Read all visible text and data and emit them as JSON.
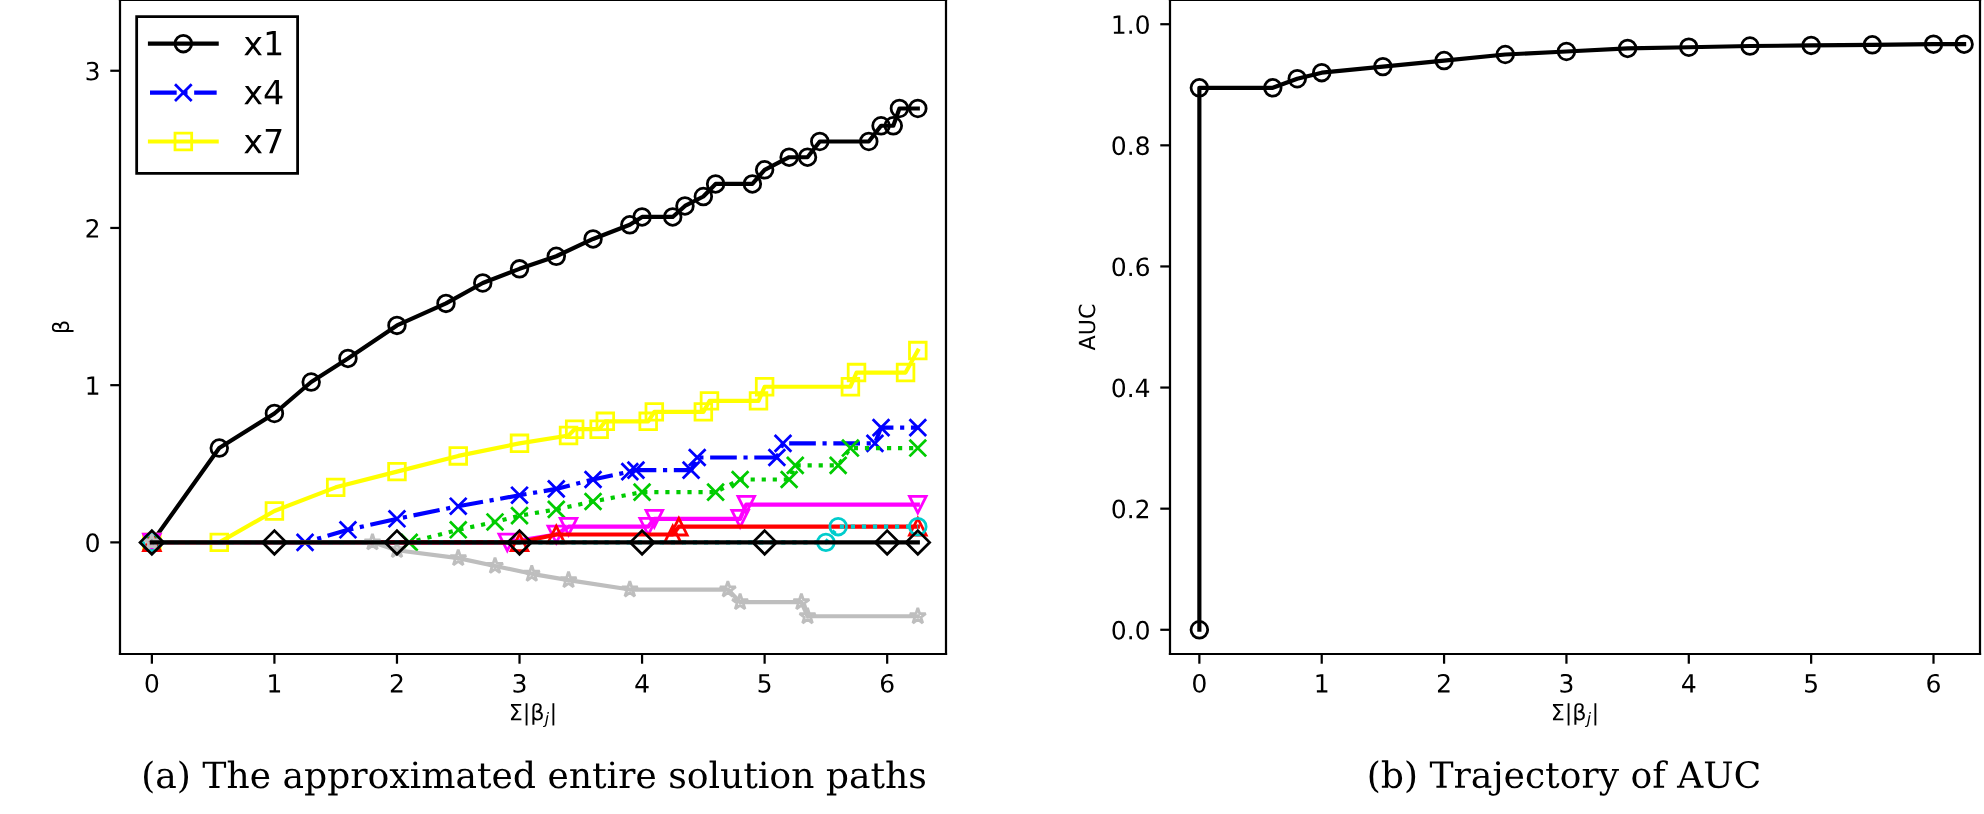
{
  "chart_data": [
    {
      "type": "line",
      "xlabel": "Σ|β$_{j}$|",
      "ylabel": "β",
      "xlim": [
        -0.26,
        6.48
      ],
      "ylim": [
        -0.71,
        3.45
      ],
      "xticks": [
        0,
        1,
        2,
        3,
        4,
        5,
        6
      ],
      "yticks": [
        0,
        1,
        2,
        3
      ],
      "grid": false,
      "legend": "top left",
      "annotations": [
        "(a) The approximated entire solution paths"
      ],
      "series": [
        {
          "name": "x1",
          "color": "#000000",
          "marker": "circle",
          "line_style": "solid",
          "x": [
            0,
            0.55,
            1.0,
            1.3,
            1.6,
            2.0,
            2.4,
            2.7,
            3.0,
            3.3,
            3.6,
            3.9,
            4.0,
            4.25,
            4.35,
            4.5,
            4.6,
            4.9,
            5.0,
            5.2,
            5.35,
            5.45,
            5.85,
            5.95,
            6.05,
            6.1,
            6.25
          ],
          "values": [
            0,
            0.6,
            0.82,
            1.02,
            1.17,
            1.38,
            1.52,
            1.65,
            1.74,
            1.82,
            1.93,
            2.02,
            2.07,
            2.07,
            2.14,
            2.2,
            2.28,
            2.28,
            2.37,
            2.45,
            2.45,
            2.55,
            2.55,
            2.65,
            2.65,
            2.76,
            2.76
          ]
        },
        {
          "name": "x4",
          "color": "#0000ff",
          "marker": "cross",
          "line_style": "dashed",
          "x": [
            0,
            1.25,
            1.6,
            2.0,
            2.5,
            3.0,
            3.3,
            3.6,
            3.9,
            3.95,
            4.4,
            4.45,
            5.1,
            5.15,
            5.9,
            5.95,
            6.25
          ],
          "values": [
            0,
            0,
            0.08,
            0.15,
            0.23,
            0.3,
            0.34,
            0.4,
            0.45,
            0.46,
            0.46,
            0.54,
            0.54,
            0.63,
            0.63,
            0.73,
            0.73
          ]
        },
        {
          "name": "x7",
          "color": "#ffff00",
          "marker": "square",
          "line_style": "solid",
          "x": [
            0,
            0.55,
            1.0,
            1.5,
            2.0,
            2.5,
            3.0,
            3.4,
            3.45,
            3.65,
            3.7,
            4.05,
            4.1,
            4.5,
            4.55,
            4.95,
            5.0,
            5.7,
            5.75,
            6.15,
            6.25
          ],
          "values": [
            0,
            0,
            0.2,
            0.35,
            0.45,
            0.55,
            0.63,
            0.68,
            0.72,
            0.72,
            0.77,
            0.77,
            0.83,
            0.83,
            0.9,
            0.9,
            0.99,
            0.99,
            1.08,
            1.08,
            1.22
          ]
        },
        {
          "color": "#00cc00",
          "marker": "cross",
          "line_style": "dotted",
          "x": [
            0,
            2.1,
            2.5,
            2.8,
            3.0,
            3.3,
            3.6,
            4.0,
            4.6,
            4.8,
            5.2,
            5.25,
            5.6,
            5.7,
            6.25
          ],
          "values": [
            0,
            0,
            0.08,
            0.13,
            0.17,
            0.21,
            0.26,
            0.32,
            0.32,
            0.4,
            0.4,
            0.49,
            0.49,
            0.6,
            0.6
          ]
        },
        {
          "color": "#ff00ff",
          "marker": "triangle_down",
          "line_style": "solid",
          "x": [
            0,
            2.9,
            3.3,
            3.4,
            4.05,
            4.1,
            4.8,
            4.85,
            6.25
          ],
          "values": [
            0,
            0,
            0.05,
            0.1,
            0.1,
            0.15,
            0.15,
            0.24,
            0.24
          ]
        },
        {
          "color": "#ff0000",
          "marker": "triangle",
          "line_style": "solid",
          "x": [
            0,
            3.0,
            3.3,
            4.25,
            4.3,
            6.25
          ],
          "values": [
            0,
            0,
            0.05,
            0.05,
            0.1,
            0.1
          ]
        },
        {
          "color": "#00cccc",
          "marker": "circle",
          "line_style": "dotted",
          "x": [
            0,
            5.5,
            5.6,
            6.25
          ],
          "values": [
            0,
            0,
            0.1,
            0.1
          ]
        },
        {
          "color": "#bebebe",
          "marker": "star",
          "line_style": "solid",
          "x": [
            0,
            1.8,
            2.0,
            2.5,
            2.8,
            3.1,
            3.4,
            3.9,
            4.7,
            4.8,
            5.3,
            5.35,
            6.25
          ],
          "values": [
            0,
            0,
            -0.05,
            -0.1,
            -0.15,
            -0.2,
            -0.24,
            -0.3,
            -0.3,
            -0.38,
            -0.38,
            -0.47,
            -0.47
          ]
        },
        {
          "color": "#000000",
          "marker": "diamond",
          "line_style": "solid",
          "x": [
            0,
            1,
            2,
            3,
            4,
            5,
            6,
            6.25
          ],
          "values": [
            0,
            0,
            0,
            0,
            0,
            0,
            0,
            0
          ]
        }
      ]
    },
    {
      "type": "line",
      "xlabel": "Σ|β$_{j}$|",
      "ylabel": "AUC",
      "xlim": [
        -0.24,
        6.38
      ],
      "ylim": [
        -0.04,
        1.04
      ],
      "xticks": [
        0,
        1,
        2,
        3,
        4,
        5,
        6
      ],
      "yticks": [
        {
          "value": 0,
          "label": "0.0"
        },
        0.2,
        0.4,
        0.6,
        0.8,
        {
          "value": 1,
          "label": "1.0"
        }
      ],
      "grid": false,
      "legend": false,
      "annotations": [
        "(b) Trajectory of AUC"
      ],
      "series": [
        {
          "color": "#000000",
          "marker": "circle",
          "line_style": "solid",
          "x": [
            0,
            0,
            0.6,
            0.8,
            1.0,
            1.5,
            2.0,
            2.5,
            3.0,
            3.5,
            4.0,
            4.5,
            5.0,
            5.5,
            6.0,
            6.25
          ],
          "values": [
            0,
            0.895,
            0.895,
            0.91,
            0.92,
            0.93,
            0.94,
            0.95,
            0.955,
            0.96,
            0.962,
            0.964,
            0.965,
            0.966,
            0.967,
            0.967
          ]
        }
      ]
    }
  ]
}
